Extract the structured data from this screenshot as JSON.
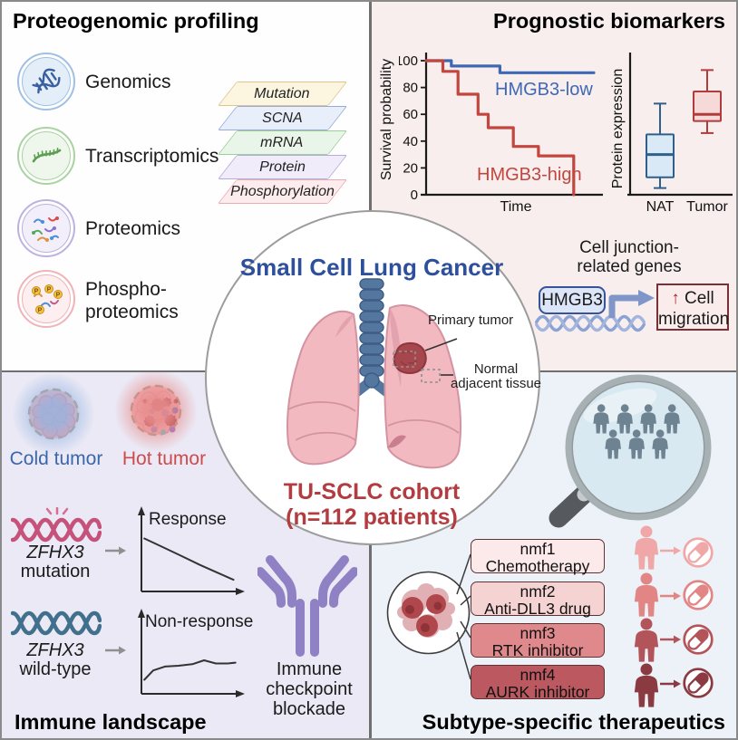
{
  "top_left": {
    "title": "Proteogenomic profiling",
    "omics": [
      {
        "lines": [
          "Genomics"
        ]
      },
      {
        "lines": [
          "Transcriptomics"
        ]
      },
      {
        "lines": [
          "Proteomics"
        ]
      },
      {
        "lines": [
          "Phospho-",
          "proteomics"
        ]
      }
    ],
    "layers": [
      {
        "label": "Mutation",
        "fill": "#fcf5e0",
        "border": "#dfc48f"
      },
      {
        "label": "SCNA",
        "fill": "#e8effb",
        "border": "#94abdb"
      },
      {
        "label": "mRNA",
        "fill": "#e9f5e9",
        "border": "#9cd09a"
      },
      {
        "label": "Protein",
        "fill": "#f0ecfa",
        "border": "#b6aade"
      },
      {
        "label": "Phosphorylation",
        "fill": "#fdecee",
        "border": "#edaab2"
      }
    ]
  },
  "top_right": {
    "title": "Prognostic biomarkers",
    "cell_junction": {
      "caption_line1": "Cell junction-",
      "caption_line2": "related genes",
      "gene": "HMGB3",
      "up_arrow": "↑",
      "outcome_line1": "Cell",
      "outcome_line2": "migration"
    }
  },
  "center": {
    "title": "Small Cell Lung Cancer",
    "primary_tumor": "Primary tumor",
    "nat_line1": "Normal",
    "nat_line2": "adjacent tissue",
    "cohort_line1": "TU-SCLC cohort",
    "cohort_line2": "(n=112 patients)"
  },
  "bottom_left": {
    "title": "Immune landscape",
    "cold_label": "Cold tumor",
    "hot_label": "Hot tumor",
    "mutation_row": {
      "gene": "ZFHX3",
      "state": "mutation"
    },
    "wildtype_row": {
      "gene": "ZFHX3",
      "state": "wild-type"
    },
    "antibody_line1": "Immune",
    "antibody_line2": "checkpoint",
    "antibody_line3": "blockade"
  },
  "bottom_right": {
    "title": "Subtype-specific therapeutics",
    "subtypes": [
      {
        "name": "nmf1",
        "therapy": "Chemotherapy",
        "fill": "#fceaea",
        "accent": "#efa7a7"
      },
      {
        "name": "nmf2",
        "therapy": "Anti-DLL3 drug",
        "fill": "#f6d3d3",
        "accent": "#e28585"
      },
      {
        "name": "nmf3",
        "therapy": "RTK inhibitor",
        "fill": "#e0898d",
        "accent": "#b25459"
      },
      {
        "name": "nmf4",
        "therapy": "AURK inhibitor",
        "fill": "#bb5860",
        "accent": "#8a3a40"
      }
    ]
  },
  "chart_data": [
    {
      "id": "survival",
      "type": "line",
      "xlabel": "Time",
      "ylabel": "Survival probability",
      "ylim": [
        0,
        100
      ],
      "xlim": [
        0,
        100
      ],
      "yticks": [
        0,
        20,
        40,
        60,
        80,
        100
      ],
      "grid": false,
      "series": [
        {
          "name": "HMGB3-low",
          "color": "#3f68b4",
          "points": [
            [
              0,
              100
            ],
            [
              15,
              100
            ],
            [
              15,
              96
            ],
            [
              44,
              96
            ],
            [
              44,
              91
            ],
            [
              100,
              91
            ]
          ]
        },
        {
          "name": "HMGB3-high",
          "color": "#c2463e",
          "points": [
            [
              0,
              100
            ],
            [
              10,
              100
            ],
            [
              10,
              92
            ],
            [
              19,
              92
            ],
            [
              19,
              75
            ],
            [
              31,
              75
            ],
            [
              31,
              60
            ],
            [
              37,
              60
            ],
            [
              37,
              50
            ],
            [
              52,
              50
            ],
            [
              52,
              36
            ],
            [
              67,
              36
            ],
            [
              67,
              29
            ],
            [
              88,
              29
            ],
            [
              88,
              0
            ]
          ]
        }
      ]
    },
    {
      "id": "expression",
      "type": "boxplot",
      "ylabel": "Protein expression",
      "categories": [
        "NAT",
        "Tumor"
      ],
      "boxes": [
        {
          "name": "NAT",
          "low": 5,
          "q1": 13,
          "median": 30,
          "q3": 45,
          "high": 68,
          "stroke": "#2f608c",
          "fill": "#d9eaf6"
        },
        {
          "name": "Tumor",
          "low": 46,
          "q1": 55,
          "median": 60,
          "q3": 77,
          "high": 93,
          "stroke": "#b23c3c",
          "fill": "#f6d9d9"
        }
      ]
    },
    {
      "id": "response",
      "type": "line",
      "annotation": "Response",
      "xlim": [
        0,
        100
      ],
      "ylim": [
        0,
        100
      ],
      "points": [
        [
          3,
          68
        ],
        [
          20,
          58
        ],
        [
          40,
          46
        ],
        [
          60,
          34
        ],
        [
          78,
          24
        ],
        [
          94,
          15
        ]
      ]
    },
    {
      "id": "nonresponse",
      "type": "line",
      "annotation": "Non-response",
      "xlim": [
        0,
        100
      ],
      "ylim": [
        0,
        100
      ],
      "points": [
        [
          3,
          18
        ],
        [
          12,
          30
        ],
        [
          24,
          35
        ],
        [
          38,
          36
        ],
        [
          52,
          38
        ],
        [
          64,
          43
        ],
        [
          76,
          39
        ],
        [
          88,
          39
        ],
        [
          96,
          40
        ]
      ]
    }
  ]
}
